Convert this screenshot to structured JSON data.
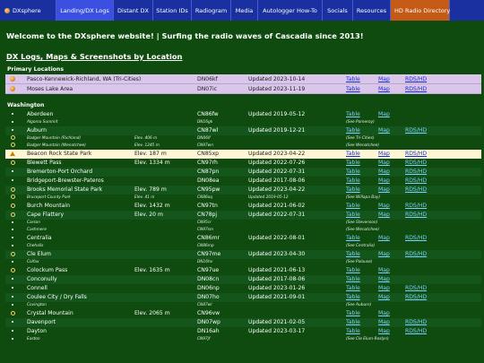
{
  "nav": {
    "items": [
      {
        "label": "DXsphere",
        "w": 63
      },
      {
        "label": "Landing/DX Logs",
        "w": 64,
        "active": true
      },
      {
        "label": "Distant DX",
        "w": 44
      },
      {
        "label": "Station IDs",
        "w": 43
      },
      {
        "label": "Radiogram",
        "w": 44
      },
      {
        "label": "Media",
        "w": 30
      },
      {
        "label": "Autologger How-To",
        "w": 72
      },
      {
        "label": "Socials",
        "w": 34
      },
      {
        "label": "Resources",
        "w": 42
      },
      {
        "label": "HD Radio Directory",
        "w": 66,
        "hd": true
      }
    ]
  },
  "welcome": "Welcome to the DXsphere website! | Surfing the radio waves of Cascadia since 2013!",
  "section_link": "DX Logs, Maps & Screenshots by Location",
  "primary": {
    "title": "Primary Locations",
    "rows": [
      {
        "name": "Pasco-Kennewick-Richland, WA (Tri-Cities)",
        "grid": "DN06kf",
        "updated": "Updated 2023-10-14",
        "table": "Table",
        "map": "Map",
        "rds": "RDS/HD"
      },
      {
        "name": "Moses Lake Area",
        "grid": "DN07ic",
        "updated": "Updated 2023-11-19",
        "table": "Table",
        "map": "Map",
        "rds": "RDS/HD"
      }
    ]
  },
  "washington": {
    "title": "Washington",
    "rows": [
      {
        "kind": "main",
        "icon": "bullet",
        "name": "Aberdeen",
        "elev": "",
        "grid": "CN86fw",
        "updated": "Updated 2019-05-12",
        "table": "Table",
        "map": "Map",
        "rds": ""
      },
      {
        "kind": "sub",
        "icon": "bullet",
        "name": "Algoma Summit",
        "elev": "",
        "grid": "DN16gk",
        "see": "(See Pomeroy)"
      },
      {
        "kind": "main",
        "icon": "bullet",
        "name": "Auburn",
        "elev": "",
        "grid": "CN87wl",
        "updated": "Updated 2019-12-21",
        "table": "Table",
        "map": "Map",
        "rds": "RDS/HD"
      },
      {
        "kind": "sub",
        "icon": "radio",
        "name": "Badger Mountain (Richland)",
        "elev": "Elev. 406 m",
        "grid": "DN06lf",
        "see": "(See Tri-Cities)"
      },
      {
        "kind": "sub",
        "icon": "radio",
        "name": "Badger Mountain (Wenatchee)",
        "elev": "Elev. 1245 m",
        "grid": "CN97wn",
        "see": "(See Wenatchee)"
      },
      {
        "kind": "highlight",
        "icon": "tri",
        "name": "Beacon Rock State Park",
        "elev": "Elev. 187 m",
        "grid": "CN85xp",
        "updated": "Updated 2023-04-22",
        "table": "Table",
        "map": "Map",
        "rds": "RDS/HD"
      },
      {
        "kind": "main",
        "icon": "radio",
        "name": "Blewett Pass",
        "elev": "Elev. 1334 m",
        "grid": "CN97rh",
        "updated": "Updated 2022-07-26",
        "table": "Table",
        "map": "Map",
        "rds": "RDS/HD"
      },
      {
        "kind": "main",
        "icon": "bullet",
        "name": "Bremerton-Port Orchard",
        "elev": "",
        "grid": "CN87pn",
        "updated": "Updated 2022-07-31",
        "table": "Table",
        "map": "Map",
        "rds": "RDS/HD"
      },
      {
        "kind": "main",
        "icon": "bullet",
        "name": "Bridgeport-Brewster-Pateros",
        "elev": "",
        "grid": "DN08ea",
        "updated": "Updated 2017-08-06",
        "table": "Table",
        "map": "Map",
        "rds": "RDS/HD"
      },
      {
        "kind": "main",
        "icon": "radio",
        "name": "Brooks Memorial State Park",
        "elev": "Elev. 789 m",
        "grid": "CN95pw",
        "updated": "Updated 2023-04-22",
        "table": "Table",
        "map": "Map",
        "rds": "RDS/HD"
      },
      {
        "kind": "sub",
        "icon": "radio",
        "name": "Bruceport County Park",
        "elev": "Elev. 41 m",
        "grid": "CN86oq",
        "updated": "Updated 2019-05-12",
        "see": "(See Willapa Bay)"
      },
      {
        "kind": "main",
        "icon": "radio",
        "name": "Burch Mountain",
        "elev": "Elev. 1432 m",
        "grid": "CN97tn",
        "updated": "Updated 2021-06-02",
        "table": "Table",
        "map": "Map",
        "rds": "RDS/HD"
      },
      {
        "kind": "main",
        "icon": "radio",
        "name": "Cape Flattery",
        "elev": "Elev. 20 m",
        "grid": "CN78pj",
        "updated": "Updated 2022-07-31",
        "table": "Table",
        "map": "Map",
        "rds": "RDS/HD"
      },
      {
        "kind": "sub",
        "icon": "bullet",
        "name": "Carson",
        "elev": "",
        "grid": "CN95cr",
        "see": "(See Stevenson)"
      },
      {
        "kind": "sub",
        "icon": "bullet",
        "name": "Cashmere",
        "elev": "",
        "grid": "CN97sm",
        "see": "(See Wenatchee)"
      },
      {
        "kind": "main",
        "icon": "bullet",
        "name": "Centralia",
        "elev": "",
        "grid": "CN86mr",
        "updated": "Updated 2022-08-01",
        "table": "Table",
        "map": "Map",
        "rds": "RDS/HD"
      },
      {
        "kind": "sub",
        "icon": "bullet",
        "name": "Chehalis",
        "elev": "",
        "grid": "CN86mp",
        "see": "(See Centralia)"
      },
      {
        "kind": "main",
        "icon": "radio",
        "name": "Cle Elum",
        "elev": "",
        "grid": "CN97me",
        "updated": "Updated 2023-04-30",
        "table": "Table",
        "map": "Map",
        "rds": "RDS/HD"
      },
      {
        "kind": "sub",
        "icon": "bullet",
        "name": "Colfax",
        "elev": "",
        "grid": "DN16hv",
        "see": "(See Palouse)"
      },
      {
        "kind": "main",
        "icon": "radio",
        "name": "Colockum Pass",
        "elev": "Elev. 1635 m",
        "grid": "CN97ue",
        "updated": "Updated 2021-06-13",
        "table": "Table",
        "map": "Map",
        "rds": ""
      },
      {
        "kind": "main",
        "icon": "bullet",
        "name": "Conconully",
        "elev": "",
        "grid": "DN08cn",
        "updated": "Updated 2017-08-06",
        "table": "Table",
        "map": "Map",
        "rds": ""
      },
      {
        "kind": "main",
        "icon": "bullet",
        "name": "Connell",
        "elev": "",
        "grid": "DN06np",
        "updated": "Updated 2023-01-26",
        "table": "Table",
        "map": "Map",
        "rds": "RDS/HD"
      },
      {
        "kind": "main",
        "icon": "bullet",
        "name": "Coulee City / Dry Falls",
        "elev": "",
        "grid": "DN07ho",
        "updated": "Updated 2021-09-01",
        "table": "Table",
        "map": "Map",
        "rds": "RDS/HD"
      },
      {
        "kind": "sub",
        "icon": "bullet",
        "name": "Covington",
        "elev": "",
        "grid": "CN87wl",
        "see": "(See Auburn)"
      },
      {
        "kind": "main",
        "icon": "radio",
        "name": "Crystal Mountain",
        "elev": "Elev. 2065 m",
        "grid": "CN96vw",
        "updated": "",
        "table": "Table",
        "map": "Map",
        "rds": ""
      },
      {
        "kind": "main",
        "icon": "bullet",
        "name": "Davenport",
        "elev": "",
        "grid": "DN07wp",
        "updated": "Updated 2021-02-05",
        "table": "Table",
        "map": "Map",
        "rds": "RDS/HD"
      },
      {
        "kind": "main",
        "icon": "bullet",
        "name": "Dayton",
        "elev": "",
        "grid": "DN16ah",
        "updated": "Updated 2023-03-17",
        "table": "Table",
        "map": "Map",
        "rds": "RDS/HD"
      },
      {
        "kind": "sub",
        "icon": "bullet",
        "name": "Easton",
        "elev": "",
        "grid": "CN97jf",
        "see": "(See Cle Elum-Roslyn)"
      }
    ]
  }
}
